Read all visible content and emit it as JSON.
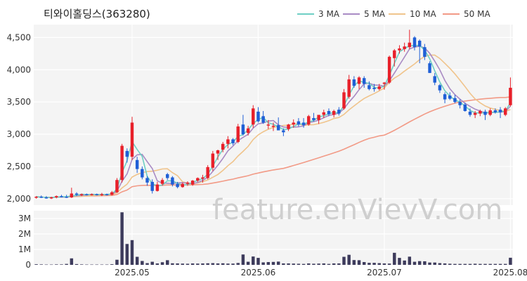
{
  "title": "티와이홀딩스(363280)",
  "watermark": "feature.enVievV.com",
  "legend": [
    {
      "label": "3 MA",
      "color": "#6fcfc4"
    },
    {
      "label": "5 MA",
      "color": "#a98bc4"
    },
    {
      "label": "10 MA",
      "color": "#f0c48c"
    },
    {
      "label": "50 MA",
      "color": "#f29a86"
    }
  ],
  "colors": {
    "up": "#e8202a",
    "down": "#1f5fd6",
    "volume": "#3d3b5c",
    "grid": "#ffffff",
    "panel_bg": "#f4f4f4"
  },
  "chart_data": [
    {
      "type": "candlestick",
      "title": "티와이홀딩스(363280)",
      "x_ticks": [
        "2025.05",
        "2025.06",
        "2025.07",
        "2025.08"
      ],
      "y_ticks": [
        "2,000",
        "2,500",
        "3,000",
        "3,500",
        "4,000",
        "4,500"
      ],
      "ylim": [
        1900,
        4700
      ],
      "x_tick_index": [
        19,
        44,
        69,
        94
      ],
      "series": [
        {
          "name": "3 MA"
        },
        {
          "name": "5 MA"
        },
        {
          "name": "10 MA"
        },
        {
          "name": "50 MA"
        }
      ],
      "ohlc": [
        [
          2020,
          2040,
          2000,
          2030
        ],
        [
          2030,
          2050,
          2010,
          2020
        ],
        [
          2020,
          2040,
          2000,
          2010
        ],
        [
          2010,
          2030,
          1995,
          2020
        ],
        [
          2020,
          2050,
          2005,
          2040
        ],
        [
          2040,
          2060,
          2020,
          2030
        ],
        [
          2030,
          2060,
          2010,
          2020
        ],
        [
          2020,
          2170,
          2010,
          2080
        ],
        [
          2080,
          2100,
          2040,
          2060
        ],
        [
          2060,
          2080,
          2040,
          2070
        ],
        [
          2070,
          2080,
          2050,
          2060
        ],
        [
          2060,
          2080,
          2050,
          2070
        ],
        [
          2070,
          2080,
          2050,
          2060
        ],
        [
          2060,
          2090,
          2040,
          2070
        ],
        [
          2070,
          2080,
          2050,
          2060
        ],
        [
          2060,
          2120,
          2050,
          2100
        ],
        [
          2100,
          2320,
          2090,
          2290
        ],
        [
          2290,
          2850,
          2250,
          2820
        ],
        [
          2740,
          2780,
          2560,
          2650
        ],
        [
          2650,
          3270,
          2600,
          3180
        ],
        [
          2600,
          2650,
          2400,
          2460
        ],
        [
          2460,
          2500,
          2300,
          2330
        ],
        [
          2320,
          2350,
          2200,
          2250
        ],
        [
          2260,
          2300,
          2080,
          2120
        ],
        [
          2120,
          2260,
          2110,
          2220
        ],
        [
          2230,
          2320,
          2200,
          2290
        ],
        [
          2380,
          2400,
          2290,
          2320
        ],
        [
          2330,
          2350,
          2190,
          2220
        ],
        [
          2230,
          2260,
          2160,
          2180
        ],
        [
          2180,
          2250,
          2170,
          2230
        ],
        [
          2230,
          2270,
          2200,
          2250
        ],
        [
          2220,
          2290,
          2200,
          2280
        ],
        [
          2280,
          2330,
          2260,
          2320
        ],
        [
          2310,
          2370,
          2250,
          2330
        ],
        [
          2320,
          2520,
          2300,
          2490
        ],
        [
          2480,
          2740,
          2430,
          2700
        ],
        [
          2700,
          2760,
          2600,
          2750
        ],
        [
          2760,
          2880,
          2720,
          2850
        ],
        [
          2850,
          2970,
          2780,
          2920
        ],
        [
          2920,
          2940,
          2830,
          2860
        ],
        [
          2880,
          3160,
          2860,
          3120
        ],
        [
          3150,
          3300,
          2980,
          3000
        ],
        [
          3020,
          3130,
          2980,
          3090
        ],
        [
          3150,
          3450,
          3100,
          3400
        ],
        [
          3350,
          3420,
          3180,
          3200
        ],
        [
          3280,
          3360,
          3160,
          3180
        ],
        [
          3140,
          3220,
          3080,
          3150
        ],
        [
          3120,
          3180,
          3050,
          3130
        ],
        [
          3140,
          3260,
          3080,
          3060
        ],
        [
          3060,
          3090,
          2970,
          3030
        ],
        [
          3080,
          3160,
          3050,
          3150
        ],
        [
          3150,
          3230,
          3100,
          3180
        ],
        [
          3200,
          3250,
          3120,
          3150
        ],
        [
          3180,
          3250,
          3100,
          3140
        ],
        [
          3150,
          3300,
          3130,
          3280
        ],
        [
          3250,
          3330,
          3200,
          3220
        ],
        [
          3220,
          3300,
          3160,
          3300
        ],
        [
          3300,
          3380,
          3250,
          3340
        ],
        [
          3360,
          3400,
          3280,
          3310
        ],
        [
          3300,
          3380,
          3260,
          3360
        ],
        [
          3380,
          3420,
          3290,
          3320
        ],
        [
          3400,
          3700,
          3380,
          3650
        ],
        [
          3580,
          3920,
          3550,
          3850
        ],
        [
          3850,
          3900,
          3720,
          3750
        ],
        [
          3780,
          3900,
          3700,
          3880
        ],
        [
          3870,
          3900,
          3720,
          3780
        ],
        [
          3760,
          3820,
          3680,
          3700
        ],
        [
          3720,
          3780,
          3660,
          3700
        ],
        [
          3700,
          3780,
          3680,
          3740
        ],
        [
          3780,
          3810,
          3690,
          3800
        ],
        [
          3800,
          4220,
          3780,
          4200
        ],
        [
          4180,
          4320,
          4050,
          4300
        ],
        [
          4300,
          4380,
          4250,
          4330
        ],
        [
          4320,
          4420,
          4280,
          4360
        ],
        [
          4350,
          4620,
          4320,
          4420
        ],
        [
          4500,
          4520,
          4300,
          4350
        ],
        [
          4450,
          4470,
          4100,
          4360
        ],
        [
          4350,
          4400,
          4150,
          4200
        ],
        [
          4100,
          4130,
          3950,
          3950
        ],
        [
          3900,
          3950,
          3760,
          3800
        ],
        [
          3760,
          3780,
          3640,
          3680
        ],
        [
          3620,
          3650,
          3480,
          3540
        ],
        [
          3600,
          3650,
          3530,
          3550
        ],
        [
          3560,
          3610,
          3480,
          3500
        ],
        [
          3500,
          3540,
          3400,
          3450
        ],
        [
          3460,
          3490,
          3350,
          3360
        ],
        [
          3350,
          3400,
          3270,
          3300
        ],
        [
          3300,
          3360,
          3250,
          3330
        ],
        [
          3320,
          3380,
          3280,
          3360
        ],
        [
          3350,
          3380,
          3220,
          3300
        ],
        [
          3300,
          3400,
          3280,
          3370
        ],
        [
          3370,
          3400,
          3320,
          3340
        ],
        [
          3380,
          3420,
          3250,
          3340
        ],
        [
          3300,
          3420,
          3280,
          3400
        ],
        [
          3450,
          3880,
          3430,
          3720
        ]
      ],
      "volume": [
        40000,
        30000,
        20000,
        20000,
        30000,
        30000,
        60000,
        420000,
        50000,
        30000,
        20000,
        20000,
        20000,
        20000,
        20000,
        40000,
        330000,
        3400000,
        1350000,
        1600000,
        520000,
        250000,
        110000,
        200000,
        90000,
        170000,
        300000,
        100000,
        90000,
        80000,
        70000,
        90000,
        80000,
        90000,
        100000,
        110000,
        90000,
        100000,
        80000,
        80000,
        120000,
        670000,
        200000,
        540000,
        450000,
        160000,
        180000,
        190000,
        210000,
        90000,
        90000,
        80000,
        70000,
        60000,
        90000,
        70000,
        80000,
        90000,
        60000,
        90000,
        90000,
        520000,
        650000,
        310000,
        300000,
        180000,
        130000,
        130000,
        110000,
        90000,
        80000,
        780000,
        450000,
        280000,
        530000,
        200000,
        240000,
        230000,
        150000,
        150000,
        110000,
        90000,
        70000,
        60000,
        60000,
        60000,
        60000,
        70000,
        60000,
        60000,
        60000,
        60000,
        60000,
        60000,
        460000
      ],
      "volume_y_ticks": [
        "0",
        "1M",
        "2M",
        "3M"
      ],
      "volume_ylim": [
        0,
        3500000
      ]
    }
  ]
}
